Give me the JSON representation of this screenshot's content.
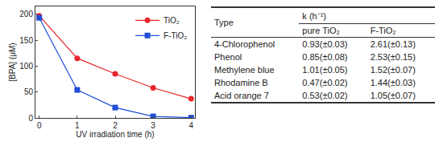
{
  "chart_data": {
    "type": "line",
    "x": [
      0,
      1,
      2,
      3,
      4
    ],
    "series": [
      {
        "name": "TiO₂",
        "color": "#e8262b",
        "marker": "circle",
        "values": [
          197,
          115,
          85,
          58,
          37
        ]
      },
      {
        "name": "F-TiO₂",
        "color": "#1f4fd6",
        "marker": "square",
        "values": [
          193,
          54,
          20,
          3,
          0.5
        ]
      }
    ],
    "x_label": "UV irradiation time (h)",
    "y_label": "[BPA] (μM)",
    "xlim": [
      -0.1,
      4.1
    ],
    "xticks": [
      0,
      1,
      2,
      3,
      4
    ],
    "ylim": [
      0,
      215
    ],
    "yticks": [
      0,
      50,
      100,
      150,
      200
    ],
    "grid": false,
    "legend": "upper right"
  },
  "table": {
    "header": [
      "Type",
      "k (h⁻¹)"
    ],
    "subheader": [
      "pure TiO₂",
      "F-TiO₂"
    ],
    "rows": [
      [
        "4-Chlorophenol",
        "0.93(±0.03)",
        "2.61(±0.13)"
      ],
      [
        "Phenol",
        "0.85(±0.08)",
        "2.53(±0.15)"
      ],
      [
        "Methylene blue",
        "1.01(±0.05)",
        "1.52(±0.07)"
      ],
      [
        "Rhodamine B",
        "0.47(±0.02)",
        "1.44(±0.03)"
      ],
      [
        "Acid orange 7",
        "0.53(±0.02)",
        "1.05(±0.07)"
      ]
    ]
  }
}
